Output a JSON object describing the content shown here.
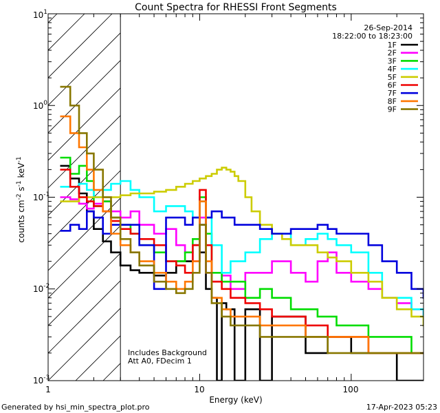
{
  "chart_data": {
    "type": "line",
    "title": "Count Spectra for RHESSI Front Segments",
    "xlabel": "Energy (keV)",
    "ylabel_parts": {
      "a": "counts cm",
      "b": "-2",
      "c": " s",
      "d": "-1",
      "e": " keV",
      "f": "-1"
    },
    "xscale": "log",
    "yscale": "log",
    "xlim": [
      1,
      300
    ],
    "ylim": [
      0.001,
      10
    ],
    "x_ticks": [
      {
        "v": 1,
        "label": "1"
      },
      {
        "v": 10,
        "label": "10"
      },
      {
        "v": 100,
        "label": "100"
      }
    ],
    "y_ticks": [
      {
        "v": 0.001,
        "base": "10",
        "exp": "-3"
      },
      {
        "v": 0.01,
        "base": "10",
        "exp": "-2"
      },
      {
        "v": 0.1,
        "base": "10",
        "exp": "-1"
      },
      {
        "v": 1,
        "base": "10",
        "exp": "0"
      },
      {
        "v": 10,
        "base": "10",
        "exp": "1"
      }
    ],
    "shaded_region": {
      "x_from": 1,
      "x_to": 3,
      "style": "diagonal-hatch"
    },
    "date": "26-Sep-2014",
    "time_range": "18:22:00 to 18:23:00",
    "annotation_lines": [
      "Includes Background",
      "Att A0, FDecim 1"
    ],
    "legend_position": "top-right",
    "series": [
      {
        "name": "1F",
        "color": "#000000",
        "x": [
          1.2,
          1.4,
          1.6,
          1.8,
          2.0,
          2.3,
          2.6,
          3.0,
          3.5,
          4,
          5,
          6,
          7,
          8,
          9,
          10,
          11,
          12,
          13,
          14,
          15,
          17,
          20,
          25,
          30,
          40,
          50,
          70,
          100,
          150,
          200,
          300
        ],
        "values": [
          0.22,
          0.16,
          0.11,
          0.07,
          0.045,
          0.033,
          0.025,
          0.018,
          0.016,
          0.015,
          0.014,
          0.015,
          0.02,
          0.02,
          0.03,
          0.025,
          0.01,
          0.008,
          0.001,
          0.007,
          0.006,
          0.001,
          0.006,
          0.001,
          0.005,
          0.005,
          0.002,
          0.003,
          0.002,
          0.002,
          0.001,
          0.001
        ]
      },
      {
        "name": "2F",
        "color": "#ff00ff",
        "x": [
          1.2,
          1.4,
          1.6,
          1.8,
          2.0,
          2.3,
          2.6,
          3.0,
          3.5,
          4,
          5,
          6,
          7,
          8,
          9,
          10,
          11,
          12,
          14,
          16,
          20,
          25,
          30,
          40,
          50,
          60,
          70,
          80,
          100,
          130,
          160,
          200,
          250,
          300
        ],
        "values": [
          0.1,
          0.095,
          0.085,
          0.075,
          0.085,
          0.09,
          0.07,
          0.06,
          0.07,
          0.05,
          0.04,
          0.045,
          0.03,
          0.025,
          0.02,
          0.06,
          0.015,
          0.012,
          0.014,
          0.01,
          0.015,
          0.015,
          0.02,
          0.015,
          0.012,
          0.02,
          0.025,
          0.015,
          0.012,
          0.01,
          0.008,
          0.007,
          0.006,
          0.005
        ]
      },
      {
        "name": "3F",
        "color": "#00dd00",
        "x": [
          1.2,
          1.4,
          1.6,
          1.8,
          2.0,
          2.3,
          2.6,
          3.0,
          3.5,
          4,
          5,
          6,
          7,
          8,
          9,
          10,
          11,
          12,
          14,
          16,
          20,
          25,
          30,
          40,
          50,
          60,
          70,
          80,
          100,
          130,
          160,
          200,
          250,
          300
        ],
        "values": [
          0.27,
          0.18,
          0.22,
          0.15,
          0.08,
          0.09,
          0.06,
          0.05,
          0.04,
          0.03,
          0.025,
          0.02,
          0.02,
          0.025,
          0.035,
          0.1,
          0.04,
          0.015,
          0.012,
          0.012,
          0.008,
          0.01,
          0.008,
          0.006,
          0.006,
          0.005,
          0.005,
          0.004,
          0.004,
          0.003,
          0.003,
          0.003,
          0.002,
          0.002
        ]
      },
      {
        "name": "4F",
        "color": "#00ffff",
        "x": [
          1.2,
          1.4,
          1.6,
          1.8,
          2.0,
          2.3,
          2.6,
          3.0,
          3.5,
          4,
          5,
          6,
          7,
          8,
          9,
          10,
          11,
          12,
          14,
          16,
          20,
          25,
          30,
          40,
          50,
          60,
          70,
          80,
          100,
          130,
          160,
          200,
          250,
          300
        ],
        "values": [
          0.13,
          0.13,
          0.14,
          0.12,
          0.1,
          0.12,
          0.14,
          0.15,
          0.12,
          0.1,
          0.07,
          0.08,
          0.08,
          0.07,
          0.06,
          0.09,
          0.06,
          0.03,
          0.015,
          0.02,
          0.025,
          0.035,
          0.04,
          0.03,
          0.035,
          0.04,
          0.035,
          0.03,
          0.025,
          0.015,
          0.008,
          0.008,
          0.006,
          0.005
        ]
      },
      {
        "name": "5F",
        "color": "#cccc00",
        "x": [
          1.2,
          1.4,
          1.6,
          1.8,
          2.0,
          2.3,
          2.6,
          3.0,
          3.5,
          4,
          5,
          6,
          7,
          8,
          9,
          10,
          11,
          12,
          13,
          14,
          15,
          16,
          17,
          18,
          20,
          22,
          25,
          30,
          35,
          40,
          50,
          60,
          70,
          80,
          100,
          130,
          160,
          200,
          250,
          300
        ],
        "values": [
          0.09,
          0.09,
          0.1,
          0.1,
          0.1,
          0.1,
          0.1,
          0.105,
          0.11,
          0.11,
          0.115,
          0.12,
          0.13,
          0.14,
          0.15,
          0.16,
          0.17,
          0.18,
          0.2,
          0.21,
          0.2,
          0.19,
          0.17,
          0.15,
          0.1,
          0.07,
          0.05,
          0.04,
          0.035,
          0.03,
          0.03,
          0.025,
          0.022,
          0.02,
          0.015,
          0.012,
          0.008,
          0.006,
          0.005,
          0.004
        ]
      },
      {
        "name": "6F",
        "color": "#ee0000",
        "x": [
          1.2,
          1.4,
          1.6,
          1.8,
          2.0,
          2.3,
          2.6,
          3.0,
          3.5,
          4,
          5,
          6,
          7,
          8,
          9,
          10,
          11,
          12,
          14,
          16,
          20,
          25,
          30,
          40,
          50,
          60,
          70,
          80,
          100,
          130,
          160,
          200,
          250,
          300
        ],
        "values": [
          0.2,
          0.13,
          0.1,
          0.09,
          0.08,
          0.07,
          0.055,
          0.045,
          0.04,
          0.035,
          0.03,
          0.02,
          0.018,
          0.015,
          0.03,
          0.12,
          0.03,
          0.012,
          0.01,
          0.008,
          0.007,
          0.006,
          0.005,
          0.005,
          0.004,
          0.004,
          0.003,
          0.003,
          0.003,
          0.002,
          0.002,
          0.002,
          0.002,
          0.002
        ]
      },
      {
        "name": "7F",
        "color": "#0000dd",
        "x": [
          1.2,
          1.4,
          1.6,
          1.8,
          2.0,
          2.3,
          2.6,
          3.0,
          3.5,
          4,
          5,
          6,
          7,
          8,
          9,
          10,
          11,
          12,
          13,
          14,
          15,
          17,
          20,
          25,
          30,
          40,
          50,
          60,
          70,
          80,
          100,
          130,
          160,
          200,
          250,
          300
        ],
        "values": [
          0.043,
          0.05,
          0.045,
          0.07,
          0.06,
          0.04,
          0.05,
          0.05,
          0.05,
          0.03,
          0.01,
          0.06,
          0.06,
          0.05,
          0.06,
          0.05,
          0.06,
          0.07,
          0.07,
          0.06,
          0.06,
          0.05,
          0.05,
          0.045,
          0.04,
          0.045,
          0.045,
          0.05,
          0.045,
          0.04,
          0.04,
          0.03,
          0.02,
          0.015,
          0.01,
          0.008
        ]
      },
      {
        "name": "8F",
        "color": "#ff7700",
        "x": [
          1.2,
          1.4,
          1.6,
          1.8,
          2.0,
          2.3,
          2.6,
          3.0,
          3.5,
          4,
          5,
          6,
          7,
          8,
          9,
          10,
          11,
          12,
          14,
          16,
          20,
          25,
          30,
          40,
          50,
          60,
          70,
          80,
          100,
          130,
          160,
          200,
          250,
          300
        ],
        "values": [
          0.76,
          0.5,
          0.35,
          0.2,
          0.12,
          0.07,
          0.04,
          0.03,
          0.025,
          0.02,
          0.015,
          0.012,
          0.01,
          0.012,
          0.02,
          0.09,
          0.02,
          0.008,
          0.006,
          0.005,
          0.005,
          0.004,
          0.004,
          0.004,
          0.003,
          0.003,
          0.003,
          0.003,
          0.003,
          0.002,
          0.002,
          0.002,
          0.002,
          0.002
        ]
      },
      {
        "name": "9F",
        "color": "#887700",
        "x": [
          1.2,
          1.4,
          1.6,
          1.8,
          2.0,
          2.3,
          2.6,
          3.0,
          3.5,
          4,
          5,
          6,
          7,
          8,
          9,
          10,
          11,
          12,
          14,
          16,
          20,
          25,
          30,
          40,
          50,
          60,
          70,
          80,
          100,
          130,
          160,
          200,
          250,
          300
        ],
        "values": [
          1.6,
          1.0,
          0.5,
          0.3,
          0.2,
          0.1,
          0.06,
          0.035,
          0.025,
          0.018,
          0.012,
          0.01,
          0.009,
          0.01,
          0.015,
          0.05,
          0.015,
          0.007,
          0.005,
          0.004,
          0.004,
          0.003,
          0.003,
          0.003,
          0.003,
          0.003,
          0.002,
          0.002,
          0.002,
          0.002,
          0.002,
          0.002,
          0.002,
          0.002
        ]
      }
    ]
  },
  "footer": {
    "generated_by": "Generated by hsi_min_spectra_plot.pro",
    "timestamp": "17-Apr-2023 05:23"
  }
}
